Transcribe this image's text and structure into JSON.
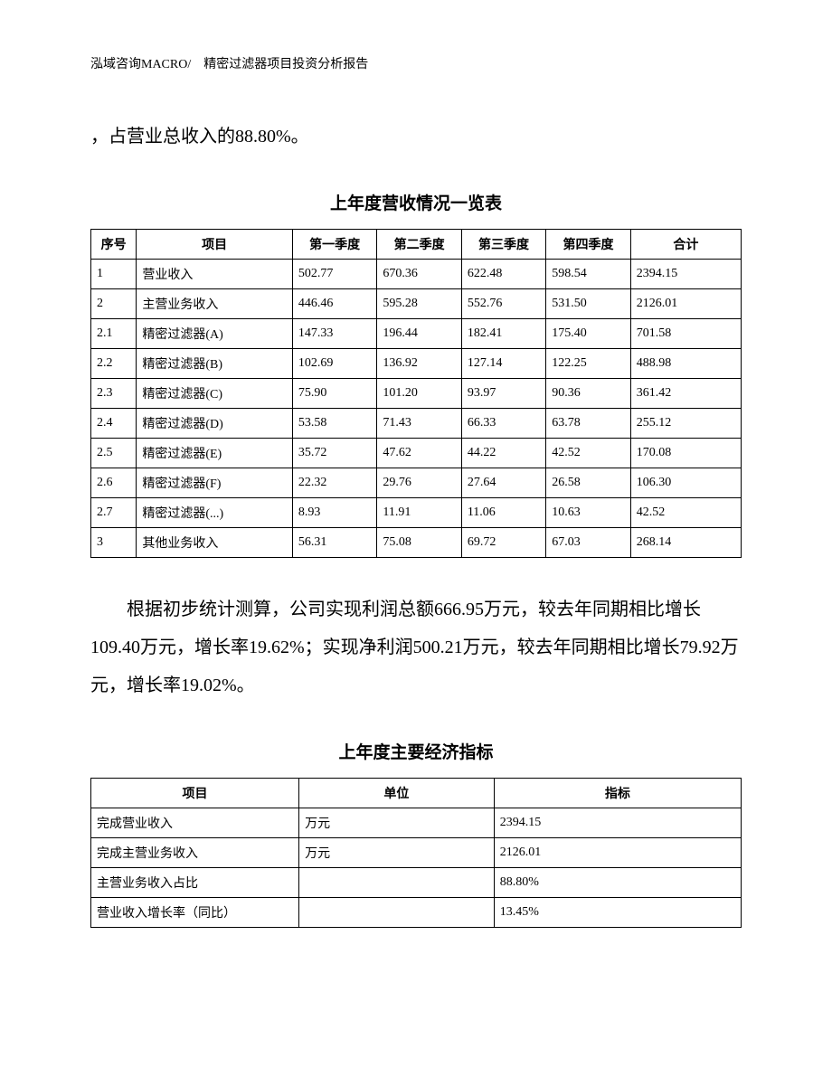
{
  "header": "泓域咨询MACRO/　精密过滤器项目投资分析报告",
  "para1": "，占营业总收入的88.80%。",
  "table1": {
    "title": "上年度营收情况一览表",
    "columns": [
      "序号",
      "项目",
      "第一季度",
      "第二季度",
      "第三季度",
      "第四季度",
      "合计"
    ],
    "rows": [
      [
        "1",
        "营业收入",
        "502.77",
        "670.36",
        "622.48",
        "598.54",
        "2394.15"
      ],
      [
        "2",
        "主营业务收入",
        "446.46",
        "595.28",
        "552.76",
        "531.50",
        "2126.01"
      ],
      [
        "2.1",
        "精密过滤器(A)",
        "147.33",
        "196.44",
        "182.41",
        "175.40",
        "701.58"
      ],
      [
        "2.2",
        "精密过滤器(B)",
        "102.69",
        "136.92",
        "127.14",
        "122.25",
        "488.98"
      ],
      [
        "2.3",
        "精密过滤器(C)",
        "75.90",
        "101.20",
        "93.97",
        "90.36",
        "361.42"
      ],
      [
        "2.4",
        "精密过滤器(D)",
        "53.58",
        "71.43",
        "66.33",
        "63.78",
        "255.12"
      ],
      [
        "2.5",
        "精密过滤器(E)",
        "35.72",
        "47.62",
        "44.22",
        "42.52",
        "170.08"
      ],
      [
        "2.6",
        "精密过滤器(F)",
        "22.32",
        "29.76",
        "27.64",
        "26.58",
        "106.30"
      ],
      [
        "2.7",
        "精密过滤器(...)",
        "8.93",
        "11.91",
        "11.06",
        "10.63",
        "42.52"
      ],
      [
        "3",
        "其他业务收入",
        "56.31",
        "75.08",
        "69.72",
        "67.03",
        "268.14"
      ]
    ]
  },
  "para2": "根据初步统计测算，公司实现利润总额666.95万元，较去年同期相比增长109.40万元，增长率19.62%；实现净利润500.21万元，较去年同期相比增长79.92万元，增长率19.02%。",
  "table2": {
    "title": "上年度主要经济指标",
    "columns": [
      "项目",
      "单位",
      "指标"
    ],
    "rows": [
      [
        "完成营业收入",
        "万元",
        "2394.15"
      ],
      [
        "完成主营业务收入",
        "万元",
        "2126.01"
      ],
      [
        "主营业务收入占比",
        "",
        "88.80%"
      ],
      [
        "营业收入增长率（同比）",
        "",
        "13.45%"
      ]
    ]
  }
}
